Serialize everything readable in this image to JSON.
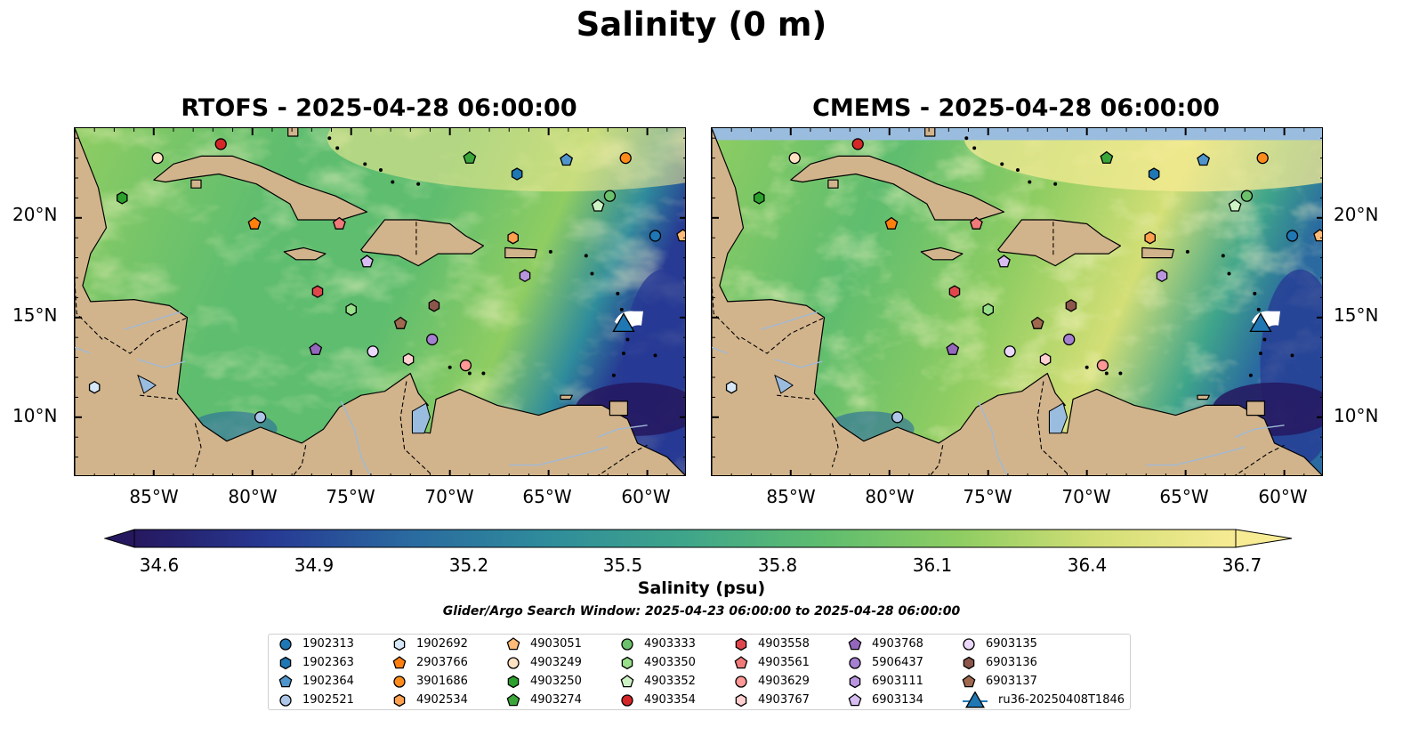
{
  "figure": {
    "suptitle": "Salinity (0 m)",
    "panels": [
      {
        "title": "RTOFS - 2025-04-28 06:00:00",
        "model": "RTOFS"
      },
      {
        "title": "CMEMS - 2025-04-28 06:00:00",
        "model": "CMEMS"
      }
    ],
    "lon_ticks": [
      "85°W",
      "80°W",
      "75°W",
      "70°W",
      "65°W",
      "60°W"
    ],
    "lat_ticks": [
      "20°N",
      "15°N",
      "10°N"
    ],
    "extent": {
      "lon_min": -89,
      "lon_max": -58,
      "lat_min": 7,
      "lat_max": 24.5
    },
    "colorbar": {
      "ticks": [
        "34.6",
        "34.9",
        "35.2",
        "35.5",
        "35.8",
        "36.1",
        "36.4",
        "36.7"
      ],
      "label": "Salinity (psu)",
      "colors": [
        "#26185f",
        "#273a94",
        "#2a6aa0",
        "#2f8c9b",
        "#3fa58a",
        "#5ebd6f",
        "#8fcd62",
        "#d3df76",
        "#f7eb94"
      ]
    },
    "search_window": "Glider/Argo Search Window: 2025-04-23 06:00:00 to 2025-04-28 06:00:00",
    "colors": {
      "land": "#d2b48c",
      "water_bg": "#9abcdf",
      "ocean_low": "#26185f",
      "ocean_high": "#fbeb96"
    }
  },
  "legend": [
    {
      "id": "1902313",
      "marker": "circle",
      "color": "#1f77b4"
    },
    {
      "id": "1902363",
      "marker": "hexagon",
      "color": "#1f77b4"
    },
    {
      "id": "1902364",
      "marker": "pentagon",
      "color": "#4f95cc"
    },
    {
      "id": "1902521",
      "marker": "circle",
      "color": "#aec7e8"
    },
    {
      "id": "1902692",
      "marker": "hexagon",
      "color": "#d6e8f7"
    },
    {
      "id": "2903766",
      "marker": "pentagon",
      "color": "#ff7f0e"
    },
    {
      "id": "3901686",
      "marker": "circle",
      "color": "#ff8c1a"
    },
    {
      "id": "4902534",
      "marker": "hexagon",
      "color": "#ffa04f"
    },
    {
      "id": "4903051",
      "marker": "pentagon",
      "color": "#ffbb78"
    },
    {
      "id": "4903249",
      "marker": "circle",
      "color": "#ffe2c2"
    },
    {
      "id": "4903250",
      "marker": "hexagon",
      "color": "#2ca02c"
    },
    {
      "id": "4903274",
      "marker": "pentagon",
      "color": "#3aa63a"
    },
    {
      "id": "4903333",
      "marker": "circle",
      "color": "#6cc26c"
    },
    {
      "id": "4903350",
      "marker": "hexagon",
      "color": "#98df8a"
    },
    {
      "id": "4903352",
      "marker": "pentagon",
      "color": "#cdf3c4"
    },
    {
      "id": "4903354",
      "marker": "circle",
      "color": "#d62728"
    },
    {
      "id": "4903558",
      "marker": "hexagon",
      "color": "#e0474c"
    },
    {
      "id": "4903561",
      "marker": "pentagon",
      "color": "#f07a7a"
    },
    {
      "id": "4903629",
      "marker": "circle",
      "color": "#ff9896"
    },
    {
      "id": "4903767",
      "marker": "hexagon",
      "color": "#ffd0cf"
    },
    {
      "id": "4903768",
      "marker": "pentagon",
      "color": "#9467bd"
    },
    {
      "id": "5906437",
      "marker": "circle",
      "color": "#a57fd0"
    },
    {
      "id": "6903111",
      "marker": "hexagon",
      "color": "#b995e0"
    },
    {
      "id": "6903134",
      "marker": "pentagon",
      "color": "#d7bdf2"
    },
    {
      "id": "6903135",
      "marker": "circle",
      "color": "#ebd8fb"
    },
    {
      "id": "6903136",
      "marker": "hexagon",
      "color": "#8c564b"
    },
    {
      "id": "6903137",
      "marker": "pentagon",
      "color": "#a0684f"
    },
    {
      "id": "ru36-20250408T1846",
      "marker": "triangle",
      "color": "#1f77b4"
    }
  ],
  "floats": [
    {
      "id": "4903354",
      "lon": -81.6,
      "lat": 23.7
    },
    {
      "id": "4903249",
      "lon": -84.8,
      "lat": 23.0
    },
    {
      "id": "4903274",
      "lon": -69.0,
      "lat": 23.0
    },
    {
      "id": "1902363",
      "lon": -66.6,
      "lat": 22.2
    },
    {
      "id": "1902364",
      "lon": -64.1,
      "lat": 22.9
    },
    {
      "id": "3901686",
      "lon": -61.1,
      "lat": 23.0
    },
    {
      "id": "4903250",
      "lon": -86.6,
      "lat": 21.0
    },
    {
      "id": "4903333",
      "lon": -61.9,
      "lat": 21.1
    },
    {
      "id": "4903352",
      "lon": -62.5,
      "lat": 20.6
    },
    {
      "id": "2903766",
      "lon": -79.9,
      "lat": 19.7
    },
    {
      "id": "4903561",
      "lon": -75.6,
      "lat": 19.7
    },
    {
      "id": "4902534",
      "lon": -66.8,
      "lat": 19.0
    },
    {
      "id": "1902313",
      "lon": -59.6,
      "lat": 19.1
    },
    {
      "id": "4903051",
      "lon": -58.2,
      "lat": 19.1
    },
    {
      "id": "6903134",
      "lon": -74.2,
      "lat": 17.8
    },
    {
      "id": "6903111",
      "lon": -66.2,
      "lat": 17.1
    },
    {
      "id": "4903558",
      "lon": -76.7,
      "lat": 16.3
    },
    {
      "id": "4903350",
      "lon": -75.0,
      "lat": 15.4
    },
    {
      "id": "6903136",
      "lon": -70.8,
      "lat": 15.6
    },
    {
      "id": "6903137",
      "lon": -72.5,
      "lat": 14.7
    },
    {
      "id": "5906437",
      "lon": -70.9,
      "lat": 13.9
    },
    {
      "id": "4903768",
      "lon": -76.8,
      "lat": 13.4
    },
    {
      "id": "6903135",
      "lon": -73.9,
      "lat": 13.3
    },
    {
      "id": "4903767",
      "lon": -72.1,
      "lat": 12.9
    },
    {
      "id": "4903629",
      "lon": -69.2,
      "lat": 12.6
    },
    {
      "id": "1902692",
      "lon": -88.0,
      "lat": 11.5
    },
    {
      "id": "1902521",
      "lon": -79.6,
      "lat": 10.0
    }
  ],
  "glider": {
    "id": "ru36-20250408T1846",
    "lon": -61.2,
    "lat": 14.6
  }
}
